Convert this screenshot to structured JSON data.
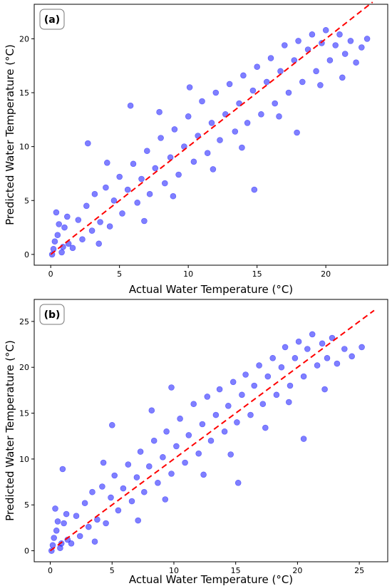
{
  "chart_data": [
    {
      "type": "scatter",
      "panel_label": "(a)",
      "xlabel": "Actual Water Temperature (°C)",
      "ylabel": "Predicted Water Temperature (°C)",
      "xlim": [
        -1.2,
        24.5
      ],
      "ylim": [
        -1.0,
        23.2
      ],
      "xticks": [
        0,
        5,
        10,
        15,
        20
      ],
      "yticks": [
        0,
        5,
        10,
        15,
        20
      ],
      "grid": false,
      "point_color": "#0000ff",
      "point_alpha": 0.5,
      "reference_line": {
        "style": "dashed",
        "color": "#ff0000",
        "from": [
          0,
          0
        ],
        "to": [
          23.4,
          23.4
        ]
      },
      "trend": "points cluster around y = x, spread ~±3 °C, denser at low values",
      "points": [
        [
          0.2,
          0.5
        ],
        [
          0.5,
          1.8
        ],
        [
          0.8,
          0.2
        ],
        [
          1.0,
          2.5
        ],
        [
          1.3,
          1.0
        ],
        [
          0.4,
          3.9
        ],
        [
          1.6,
          0.6
        ],
        [
          2.0,
          3.2
        ],
        [
          2.3,
          1.4
        ],
        [
          2.6,
          4.5
        ],
        [
          3.0,
          2.2
        ],
        [
          3.2,
          5.6
        ],
        [
          3.6,
          3.0
        ],
        [
          4.0,
          6.2
        ],
        [
          4.3,
          2.6
        ],
        [
          4.6,
          5.0
        ],
        [
          5.0,
          7.2
        ],
        [
          5.2,
          3.8
        ],
        [
          5.6,
          6.0
        ],
        [
          6.0,
          8.4
        ],
        [
          6.3,
          4.8
        ],
        [
          6.6,
          7.0
        ],
        [
          7.0,
          9.6
        ],
        [
          7.2,
          5.6
        ],
        [
          7.6,
          8.0
        ],
        [
          8.0,
          10.8
        ],
        [
          8.3,
          6.6
        ],
        [
          8.7,
          9.0
        ],
        [
          9.0,
          11.6
        ],
        [
          9.3,
          7.4
        ],
        [
          9.7,
          10.0
        ],
        [
          10.0,
          12.8
        ],
        [
          10.4,
          8.6
        ],
        [
          10.7,
          11.0
        ],
        [
          11.0,
          14.2
        ],
        [
          11.4,
          9.4
        ],
        [
          11.7,
          12.2
        ],
        [
          12.0,
          15.0
        ],
        [
          12.3,
          10.6
        ],
        [
          12.7,
          13.0
        ],
        [
          13.0,
          15.8
        ],
        [
          13.4,
          11.4
        ],
        [
          13.7,
          14.0
        ],
        [
          14.0,
          16.6
        ],
        [
          14.3,
          12.2
        ],
        [
          14.7,
          15.2
        ],
        [
          15.0,
          17.4
        ],
        [
          15.3,
          13.0
        ],
        [
          15.7,
          16.0
        ],
        [
          16.0,
          18.2
        ],
        [
          16.3,
          14.0
        ],
        [
          16.7,
          17.0
        ],
        [
          17.0,
          19.4
        ],
        [
          17.3,
          15.0
        ],
        [
          17.7,
          18.0
        ],
        [
          18.0,
          19.8
        ],
        [
          18.3,
          16.0
        ],
        [
          18.7,
          19.0
        ],
        [
          19.0,
          20.4
        ],
        [
          19.3,
          17.0
        ],
        [
          19.7,
          19.6
        ],
        [
          20.0,
          20.8
        ],
        [
          20.3,
          18.0
        ],
        [
          20.7,
          19.4
        ],
        [
          21.0,
          20.4
        ],
        [
          21.4,
          18.6
        ],
        [
          21.8,
          19.8
        ],
        [
          22.2,
          17.8
        ],
        [
          22.6,
          19.2
        ],
        [
          23.0,
          20.0
        ],
        [
          0.1,
          0.0
        ],
        [
          0.3,
          1.2
        ],
        [
          0.6,
          2.8
        ],
        [
          0.9,
          0.7
        ],
        [
          1.2,
          3.5
        ],
        [
          14.8,
          6.0
        ],
        [
          10.1,
          15.5
        ],
        [
          5.8,
          13.8
        ],
        [
          2.7,
          10.3
        ],
        [
          17.9,
          11.3
        ],
        [
          3.5,
          1.0
        ],
        [
          6.8,
          3.1
        ],
        [
          8.9,
          5.4
        ],
        [
          11.8,
          7.9
        ],
        [
          13.9,
          9.9
        ],
        [
          16.6,
          12.8
        ],
        [
          19.6,
          15.7
        ],
        [
          21.2,
          16.4
        ],
        [
          4.1,
          8.5
        ],
        [
          7.9,
          13.2
        ]
      ]
    },
    {
      "type": "scatter",
      "panel_label": "(b)",
      "xlabel": "Actual Water Temperature (°C)",
      "ylabel": "Predicted Water Temperature (°C)",
      "xlim": [
        -1.3,
        27.3
      ],
      "ylim": [
        -1.2,
        27.4
      ],
      "xticks": [
        0,
        5,
        10,
        15,
        20,
        25
      ],
      "yticks": [
        0,
        5,
        10,
        15,
        20,
        25
      ],
      "grid": false,
      "point_color": "#0000ff",
      "point_alpha": 0.5,
      "reference_line": {
        "style": "dashed",
        "color": "#ff0000",
        "from": [
          0,
          0
        ],
        "to": [
          26.2,
          26.2
        ]
      },
      "trend": "points cluster around y = x, spread ~±3 °C",
      "points": [
        [
          0.2,
          0.6
        ],
        [
          0.5,
          2.2
        ],
        [
          0.8,
          0.3
        ],
        [
          1.1,
          3.0
        ],
        [
          1.4,
          1.2
        ],
        [
          0.4,
          4.6
        ],
        [
          1.7,
          0.8
        ],
        [
          2.1,
          3.8
        ],
        [
          2.4,
          1.6
        ],
        [
          2.8,
          5.2
        ],
        [
          3.1,
          2.6
        ],
        [
          3.4,
          6.4
        ],
        [
          3.8,
          3.4
        ],
        [
          4.2,
          7.0
        ],
        [
          4.5,
          3.0
        ],
        [
          4.9,
          5.8
        ],
        [
          5.2,
          8.2
        ],
        [
          5.5,
          4.4
        ],
        [
          5.9,
          6.8
        ],
        [
          6.3,
          9.4
        ],
        [
          6.6,
          5.4
        ],
        [
          7.0,
          8.0
        ],
        [
          7.3,
          10.8
        ],
        [
          7.6,
          6.4
        ],
        [
          8.0,
          9.2
        ],
        [
          8.4,
          12.0
        ],
        [
          8.7,
          7.4
        ],
        [
          9.1,
          10.2
        ],
        [
          9.4,
          13.0
        ],
        [
          9.8,
          8.4
        ],
        [
          10.2,
          11.4
        ],
        [
          10.5,
          14.4
        ],
        [
          10.9,
          9.6
        ],
        [
          11.2,
          12.6
        ],
        [
          11.6,
          16.0
        ],
        [
          12.0,
          10.6
        ],
        [
          12.3,
          13.8
        ],
        [
          12.7,
          16.8
        ],
        [
          13.0,
          12.0
        ],
        [
          13.4,
          14.8
        ],
        [
          13.7,
          17.6
        ],
        [
          14.1,
          13.0
        ],
        [
          14.4,
          15.8
        ],
        [
          14.8,
          18.4
        ],
        [
          15.1,
          14.0
        ],
        [
          15.5,
          17.0
        ],
        [
          15.8,
          19.2
        ],
        [
          16.2,
          14.8
        ],
        [
          16.5,
          18.0
        ],
        [
          16.9,
          20.2
        ],
        [
          17.2,
          16.0
        ],
        [
          17.6,
          19.0
        ],
        [
          18.0,
          21.0
        ],
        [
          18.3,
          17.0
        ],
        [
          18.7,
          20.0
        ],
        [
          19.0,
          22.2
        ],
        [
          19.4,
          18.0
        ],
        [
          19.8,
          21.0
        ],
        [
          20.1,
          22.8
        ],
        [
          20.5,
          19.0
        ],
        [
          20.8,
          22.0
        ],
        [
          21.2,
          23.6
        ],
        [
          21.6,
          20.2
        ],
        [
          22.0,
          22.6
        ],
        [
          22.4,
          21.0
        ],
        [
          22.8,
          23.2
        ],
        [
          23.2,
          20.4
        ],
        [
          23.8,
          22.0
        ],
        [
          24.4,
          21.2
        ],
        [
          25.2,
          22.2
        ],
        [
          0.1,
          0.0
        ],
        [
          0.3,
          1.4
        ],
        [
          0.6,
          3.2
        ],
        [
          0.9,
          0.8
        ],
        [
          1.3,
          4.0
        ],
        [
          15.2,
          7.4
        ],
        [
          9.8,
          17.8
        ],
        [
          5.0,
          13.7
        ],
        [
          1.0,
          8.9
        ],
        [
          20.5,
          12.2
        ],
        [
          3.6,
          1.0
        ],
        [
          7.1,
          3.3
        ],
        [
          9.3,
          5.6
        ],
        [
          12.4,
          8.3
        ],
        [
          14.6,
          10.5
        ],
        [
          17.4,
          13.4
        ],
        [
          19.3,
          16.2
        ],
        [
          22.2,
          17.6
        ],
        [
          4.3,
          9.6
        ],
        [
          8.2,
          15.3
        ]
      ]
    }
  ]
}
